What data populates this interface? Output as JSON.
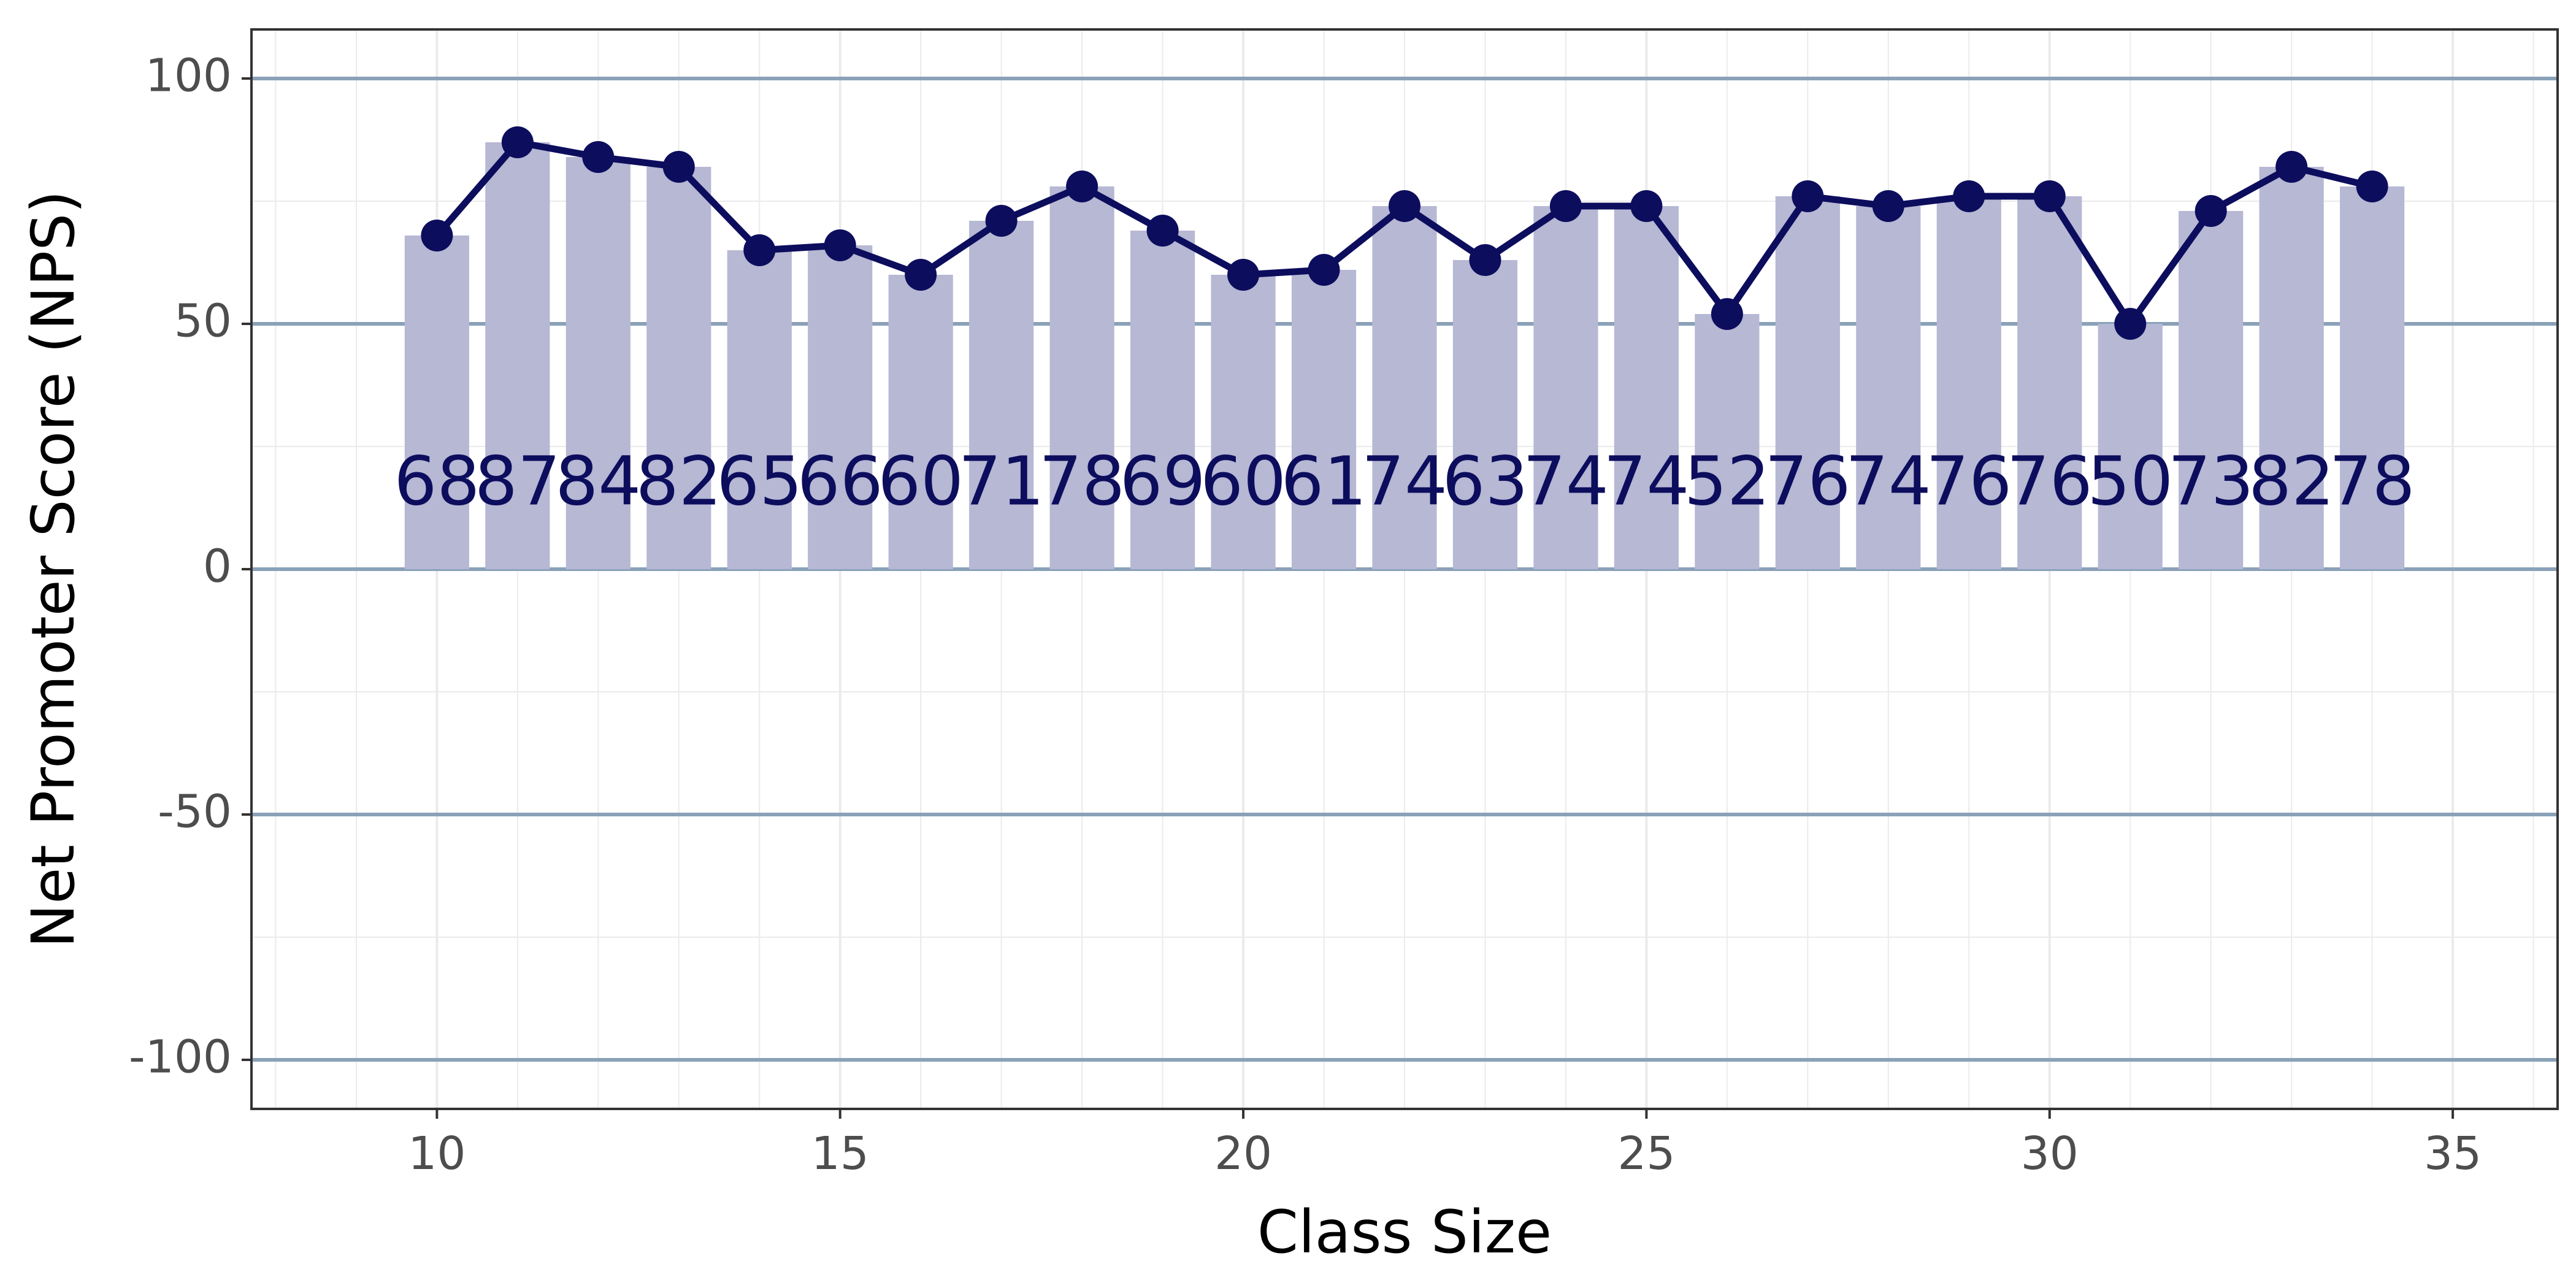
{
  "chart_data": {
    "type": "bar",
    "overlay": "line",
    "x": [
      10,
      11,
      12,
      13,
      14,
      15,
      16,
      17,
      18,
      19,
      20,
      21,
      22,
      23,
      24,
      25,
      26,
      27,
      28,
      29,
      30,
      31,
      32,
      33,
      34
    ],
    "values": [
      68,
      87,
      84,
      82,
      65,
      66,
      60,
      71,
      78,
      69,
      60,
      61,
      74,
      63,
      74,
      74,
      52,
      76,
      74,
      76,
      76,
      50,
      73,
      82,
      78
    ],
    "xlabel": "Class Size",
    "ylabel": "Net Promoter Score (NPS)",
    "xlim": [
      7.7,
      36.3
    ],
    "ylim": [
      -110,
      110
    ],
    "xticks": [
      "10",
      "15",
      "20",
      "25",
      "30",
      "35"
    ],
    "yticks": [
      "100",
      "50",
      "0",
      "-50",
      "-100"
    ],
    "grid": true,
    "legend": "none",
    "colors": {
      "bar": "#b6b8d4",
      "line": "#0d0d5e",
      "reference_line": "#8aa1b8",
      "grid": "#ebebeb",
      "panel_border": "#333333"
    }
  }
}
